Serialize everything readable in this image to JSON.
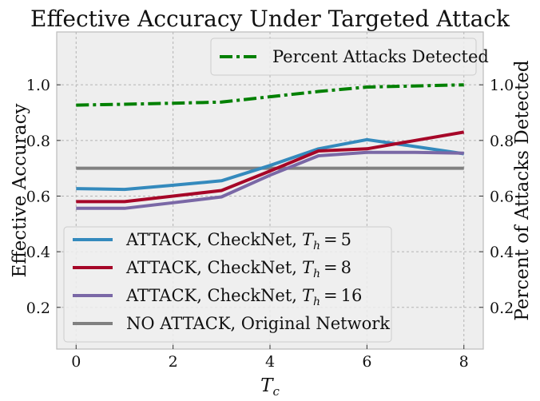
{
  "chart_data": {
    "type": "line",
    "title": "Effective Accuracy Under Targeted Attack",
    "xlabel": "T",
    "xlabel_sub": "c",
    "ylabel_left": "Effective Accuracy",
    "ylabel_right": "Percent of Attacks Detected",
    "xlim": [
      -0.4,
      8.4
    ],
    "ylim": [
      0.05,
      1.19
    ],
    "xticks": [
      0,
      2,
      4,
      6,
      8
    ],
    "yticks": [
      0.2,
      0.4,
      0.6,
      0.8,
      1.0
    ],
    "ytick_labels": [
      "0.2",
      "0.4",
      "0.6",
      "0.8",
      "1.0"
    ],
    "grid": true,
    "legend_upper_position": "top-right",
    "legend_lower_position": "bottom-left",
    "x": [
      0,
      1,
      2,
      3,
      4,
      5,
      6,
      7,
      8
    ],
    "series_left": [
      {
        "name_prefix": "ATTACK, CheckNet,",
        "name_param": "T",
        "name_sub": "h",
        "name_value": "5",
        "color": "#348abd",
        "values": [
          0.627,
          0.624,
          0.639,
          0.655,
          0.71,
          0.77,
          0.803,
          0.778,
          0.752
        ]
      },
      {
        "name_prefix": "ATTACK, CheckNet,",
        "name_param": "T",
        "name_sub": "h",
        "name_value": "8",
        "color": "#a60628",
        "values": [
          0.58,
          0.58,
          0.6,
          0.62,
          0.69,
          0.762,
          0.77,
          0.8,
          0.83
        ]
      },
      {
        "name_prefix": "ATTACK, CheckNet,",
        "name_param": "T",
        "name_sub": "h",
        "name_value": "16",
        "color": "#7a68a6",
        "values": [
          0.556,
          0.556,
          0.576,
          0.597,
          0.675,
          0.745,
          0.757,
          0.757,
          0.754
        ]
      },
      {
        "name_prefix": "NO ATTACK, Original Network",
        "name_param": "",
        "name_sub": "",
        "name_value": "",
        "color": "#808080",
        "values": [
          0.7,
          0.7,
          0.7,
          0.7,
          0.7,
          0.7,
          0.7,
          0.7,
          0.7
        ]
      }
    ],
    "series_right": [
      {
        "name": "Percent Attacks Detected",
        "color": "#008000",
        "style": "dash-dot",
        "values": [
          0.927,
          0.93,
          0.934,
          0.938,
          0.957,
          0.976,
          0.992,
          0.996,
          1.0
        ]
      }
    ]
  }
}
